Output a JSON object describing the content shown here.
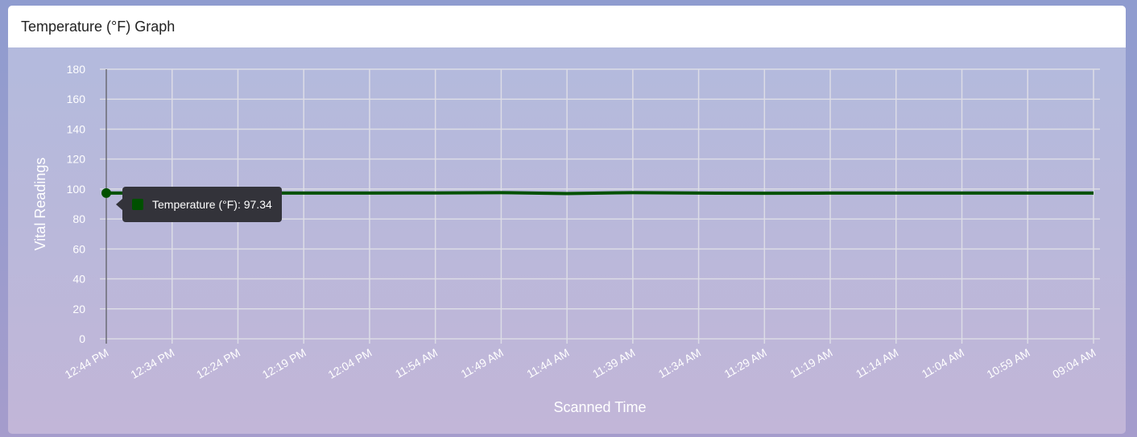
{
  "header": {
    "title": "Temperature (°F) Graph"
  },
  "chart_data": {
    "type": "line",
    "title": "",
    "xlabel": "Scanned Time",
    "ylabel": "Vital Readings",
    "ylim": [
      0,
      180
    ],
    "yticks": [
      0,
      20,
      40,
      60,
      80,
      100,
      120,
      140,
      160,
      180
    ],
    "grid": true,
    "categories": [
      "12:44 PM",
      "12:34 PM",
      "12:24 PM",
      "12:19 PM",
      "12:04 PM",
      "11:54 AM",
      "11:49 AM",
      "11:44 AM",
      "11:39 AM",
      "11:34 AM",
      "11:29 AM",
      "11:19 AM",
      "11:14 AM",
      "11:04 AM",
      "10:59 AM",
      "09:04 AM"
    ],
    "series": [
      {
        "name": "Temperature (°F)",
        "color": "#005000",
        "values": [
          97.34,
          97.3,
          97.3,
          97.3,
          97.3,
          97.4,
          97.6,
          97.0,
          97.6,
          97.3,
          97.2,
          97.3,
          97.3,
          97.3,
          97.3,
          97.3
        ]
      }
    ],
    "tooltip": {
      "label": "Temperature (°F): 97.34",
      "category": "12:44 PM"
    }
  }
}
